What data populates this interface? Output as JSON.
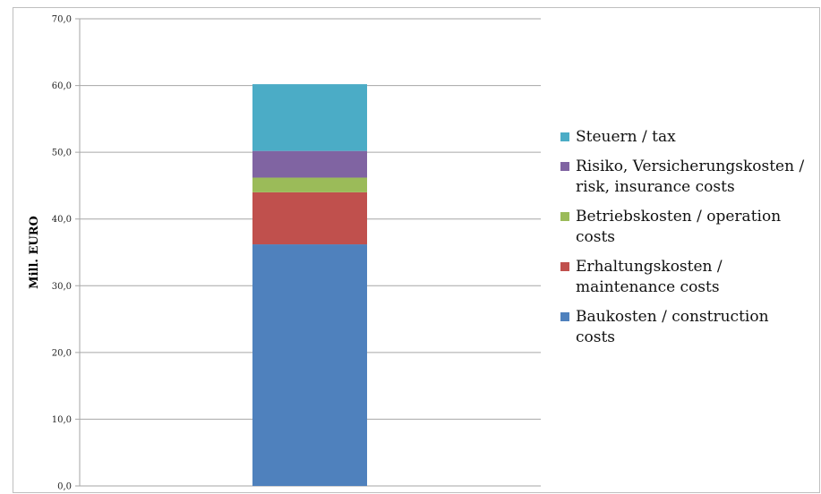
{
  "chart_data": {
    "type": "bar",
    "stacked": true,
    "categories": [
      ""
    ],
    "ylabel": "Mill. EURO",
    "xlabel": "",
    "title": "",
    "ylim": [
      0,
      70
    ],
    "yticks": [
      "0,0",
      "10,0",
      "20,0",
      "30,0",
      "40,0",
      "50,0",
      "60,0",
      "70,0"
    ],
    "grid": true,
    "legend_position": "right",
    "series": [
      {
        "name": "Baukosten / construction costs",
        "values": [
          36.2
        ],
        "color": "#4f81bd",
        "legend_lines": [
          "Baukosten / construction",
          "costs"
        ]
      },
      {
        "name": "Erhaltungskosten / maintenance costs",
        "values": [
          7.8
        ],
        "color": "#c0504d",
        "legend_lines": [
          "Erhaltungskosten /",
          "maintenance costs"
        ]
      },
      {
        "name": "Betriebskosten / operation costs",
        "values": [
          2.2
        ],
        "color": "#9bbb59",
        "legend_lines": [
          "Betriebskosten / operation",
          "costs"
        ]
      },
      {
        "name": "Risiko, Versicherungskosten / risk, insurance costs",
        "values": [
          4.0
        ],
        "color": "#8064a2",
        "legend_lines": [
          "Risiko, Versicherungskosten /",
          "risk, insurance costs"
        ]
      },
      {
        "name": "Steuern / tax",
        "values": [
          10.0
        ],
        "color": "#4bacc6",
        "legend_lines": [
          "Steuern / tax"
        ]
      }
    ]
  }
}
